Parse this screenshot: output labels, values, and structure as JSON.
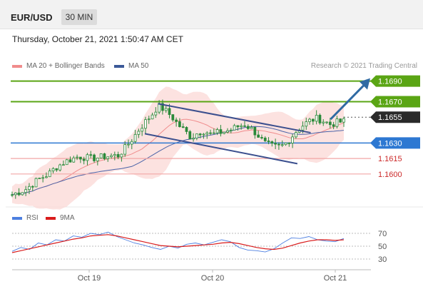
{
  "header": {
    "symbol": "EUR/USD",
    "timeframe": "30 MIN",
    "datetime": "Thursday, October 21, 2021 1:50:47 AM CET"
  },
  "legend": {
    "ma20": "MA 20 + Bollinger Bands",
    "ma50": "MA 50",
    "credit": "Research © 2021 Trading Central",
    "rsi": "RSI",
    "rsi_ma": "9MA"
  },
  "colors": {
    "resistance": "#5aa514",
    "pivot": "#2d78d2",
    "support": "#f2a6a6",
    "support_text": "#cc2a2a",
    "current": "#2a2a2a",
    "candle": "#2b8a3a",
    "bollinger": "#fbd8d6",
    "ma20": "#f08c8c",
    "ma50": "#4a63a8",
    "channel": "#3b4f8e",
    "arrow": "#2f6aa3",
    "rsi": "#4d7fe0",
    "rsi_ma": "#d91c1c"
  },
  "chart_data": [
    {
      "type": "candlestick",
      "x_labels": [
        "Oct 19",
        "Oct 20",
        "Oct 21"
      ],
      "ylim": [
        1.1575,
        1.1698
      ],
      "levels": [
        {
          "value": 1.169,
          "label": "1.1690",
          "kind": "resistance"
        },
        {
          "value": 1.167,
          "label": "1.1670",
          "kind": "resistance"
        },
        {
          "value": 1.1655,
          "label": "1.1655",
          "kind": "current"
        },
        {
          "value": 1.163,
          "label": "1.1630",
          "kind": "pivot"
        },
        {
          "value": 1.1615,
          "label": "1.1615",
          "kind": "support"
        },
        {
          "value": 1.16,
          "label": "1.1600",
          "kind": "support"
        }
      ],
      "close_path": [
        [
          0,
          1.158
        ],
        [
          4,
          1.1585
        ],
        [
          8,
          1.1595
        ],
        [
          11,
          1.16
        ],
        [
          13,
          1.1606
        ],
        [
          16,
          1.1612
        ],
        [
          20,
          1.1617
        ],
        [
          24,
          1.1615
        ],
        [
          28,
          1.1617
        ],
        [
          32,
          1.1618
        ],
        [
          34,
          1.1625
        ],
        [
          36,
          1.1633
        ],
        [
          38,
          1.1642
        ],
        [
          40,
          1.165
        ],
        [
          42,
          1.1657
        ],
        [
          44,
          1.1666
        ],
        [
          46,
          1.1662
        ],
        [
          48,
          1.1656
        ],
        [
          50,
          1.1648
        ],
        [
          52,
          1.1642
        ],
        [
          54,
          1.1635
        ],
        [
          56,
          1.164
        ],
        [
          58,
          1.1642
        ],
        [
          60,
          1.1638
        ],
        [
          62,
          1.164
        ],
        [
          64,
          1.1641
        ],
        [
          66,
          1.1643
        ],
        [
          68,
          1.1646
        ],
        [
          70,
          1.1648
        ],
        [
          72,
          1.1644
        ],
        [
          74,
          1.1638
        ],
        [
          76,
          1.163
        ],
        [
          78,
          1.1627
        ],
        [
          80,
          1.1626
        ],
        [
          82,
          1.1628
        ],
        [
          84,
          1.1635
        ],
        [
          86,
          1.1643
        ],
        [
          88,
          1.1648
        ],
        [
          90,
          1.1652
        ],
        [
          92,
          1.1654
        ],
        [
          94,
          1.1651
        ],
        [
          96,
          1.1648
        ],
        [
          98,
          1.165
        ],
        [
          100,
          1.1651
        ]
      ],
      "channel_upper": [
        [
          44,
          1.1668
        ],
        [
          90,
          1.164
        ]
      ],
      "channel_lower": [
        [
          40,
          1.1639
        ],
        [
          86,
          1.161
        ]
      ],
      "projection": [
        [
          96,
          1.1653
        ],
        [
          100,
          1.169
        ]
      ]
    },
    {
      "type": "line",
      "name": "RSI",
      "yticks": [
        30,
        50,
        70
      ],
      "ylim": [
        20,
        80
      ],
      "series": [
        {
          "name": "RSI",
          "values": [
            42,
            48,
            45,
            55,
            52,
            60,
            58,
            66,
            64,
            70,
            68,
            72,
            65,
            60,
            55,
            52,
            48,
            45,
            50,
            47,
            53,
            55,
            52,
            56,
            60,
            57,
            48,
            44,
            43,
            41,
            46,
            55,
            63,
            62,
            65,
            60,
            58,
            57,
            62
          ]
        },
        {
          "name": "9MA",
          "values": [
            40,
            43,
            46,
            49,
            52,
            55,
            58,
            61,
            63,
            66,
            67,
            68,
            66,
            63,
            60,
            57,
            54,
            51,
            50,
            49,
            50,
            51,
            52,
            53,
            55,
            56,
            54,
            51,
            48,
            46,
            45,
            47,
            51,
            55,
            58,
            60,
            60,
            59,
            60
          ]
        }
      ]
    }
  ]
}
